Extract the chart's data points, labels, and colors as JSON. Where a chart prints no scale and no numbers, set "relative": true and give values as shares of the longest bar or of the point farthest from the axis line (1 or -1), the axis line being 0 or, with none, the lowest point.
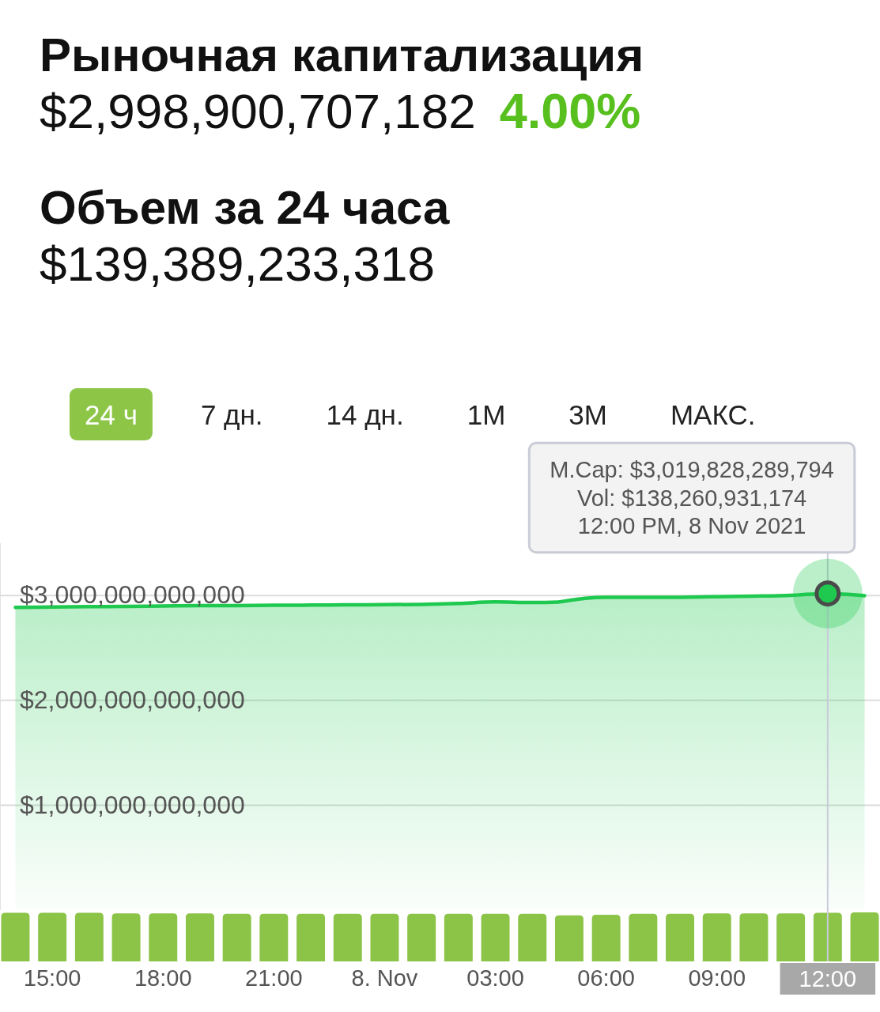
{
  "chart_data": [
    {
      "type": "other",
      "title": "Рыночная капитализация",
      "annotations": [
        "$2,998,900,707,182",
        "4.00%",
        "Объем за 24 часа",
        "$139,389,233,318"
      ]
    },
    {
      "type": "area",
      "x": [
        "2021-11-07T14:00",
        "2021-11-07T15:00",
        "2021-11-07T16:00",
        "2021-11-07T17:00",
        "2021-11-07T18:00",
        "2021-11-07T19:00",
        "2021-11-07T20:00",
        "2021-11-07T21:00",
        "2021-11-07T22:00",
        "2021-11-07T23:00",
        "2021-11-08T00:00",
        "2021-11-08T01:00",
        "2021-11-08T02:00",
        "2021-11-08T03:00",
        "2021-11-08T04:00",
        "2021-11-08T04:42",
        "2021-11-08T05:00",
        "2021-11-08T05:30",
        "2021-11-08T06:00",
        "2021-11-08T07:00",
        "2021-11-08T08:00",
        "2021-11-08T09:00",
        "2021-11-08T10:00",
        "2021-11-08T11:00",
        "2021-11-08T12:00",
        "2021-11-08T13:00"
      ],
      "series": [
        {
          "color": "#1fc94f",
          "values": [
            2887000000000,
            2890000000000,
            2894000000000,
            2897000000000,
            2900000000000,
            2904000000000,
            2905000000000,
            2908000000000,
            2909000000000,
            2912000000000,
            2913000000000,
            2916000000000,
            2925000000000,
            2939000000000,
            2934000000000,
            2938000000000,
            2953000000000,
            2976000000000,
            2983000000000,
            2983000000000,
            2984000000000,
            2989000000000,
            2995000000000,
            3003000000000,
            3019828289794,
            2999000000000
          ]
        }
      ],
      "xlim": [
        "2021-11-07T13:35",
        "2021-11-08T13:25"
      ],
      "ylim": [
        0,
        3500000000000
      ],
      "yticks": [
        {
          "value": 1000000000000,
          "label": "$1,000,000,000,000"
        },
        {
          "value": 2000000000000,
          "label": "$2,000,000,000,000"
        },
        {
          "value": 3000000000000,
          "label": "$3,000,000,000,000"
        }
      ],
      "grid": "y",
      "tick_labels": "y",
      "ref_lines": [
        {
          "axis": "x",
          "value": "2021-11-08T12:00"
        }
      ],
      "annotations": [
        "24 ч",
        "7 дн.",
        "14 дн.",
        "1М",
        "3М",
        "МАКС.",
        {
          "text": "M.Cap: $3,019,828,289,794\nVol: $138,260,931,174\n12:00 PM, 8 Nov 2021",
          "x": "2021-11-08T12:00",
          "y": 3019828289794
        }
      ]
    },
    {
      "type": "bar",
      "x": [
        "2021-11-07T14:00",
        "2021-11-07T15:00",
        "2021-11-07T16:00",
        "2021-11-07T17:00",
        "2021-11-07T18:00",
        "2021-11-07T19:00",
        "2021-11-07T20:00",
        "2021-11-07T21:00",
        "2021-11-07T22:00",
        "2021-11-07T23:00",
        "2021-11-08T00:00",
        "2021-11-08T01:00",
        "2021-11-08T02:00",
        "2021-11-08T03:00",
        "2021-11-08T04:00",
        "2021-11-08T05:00",
        "2021-11-08T06:00",
        "2021-11-08T07:00",
        "2021-11-08T08:00",
        "2021-11-08T09:00",
        "2021-11-08T10:00",
        "2021-11-08T11:00",
        "2021-11-08T12:00",
        "2021-11-08T13:00"
      ],
      "values": [
        0.99,
        0.99,
        0.99,
        0.98,
        0.98,
        0.98,
        0.97,
        0.97,
        0.97,
        0.97,
        0.97,
        0.97,
        0.97,
        0.97,
        0.97,
        0.94,
        0.95,
        0.97,
        0.97,
        0.98,
        0.98,
        0.98,
        0.99,
        1
      ],
      "color": "#8cc448",
      "relative": true,
      "xlim": [
        "2021-11-07T13:35",
        "2021-11-08T13:25"
      ],
      "xticks": [
        {
          "value": "2021-11-07T15:00",
          "label": "15:00"
        },
        {
          "value": "2021-11-07T18:00",
          "label": "18:00"
        },
        {
          "value": "2021-11-07T21:00",
          "label": "21:00"
        },
        {
          "value": "2021-11-08T00:00",
          "label": "8. Nov"
        },
        {
          "value": "2021-11-08T03:00",
          "label": "03:00"
        },
        {
          "value": "2021-11-08T06:00",
          "label": "06:00"
        },
        {
          "value": "2021-11-08T09:00",
          "label": "09:00"
        }
      ],
      "tick_labels": "x",
      "ref_lines": [
        {
          "axis": "x",
          "value": "2021-11-08T12:00",
          "label": "12:00"
        }
      ]
    }
  ]
}
